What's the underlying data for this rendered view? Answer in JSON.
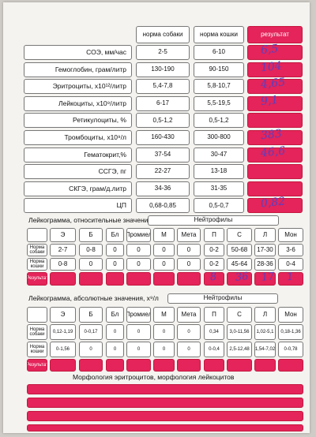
{
  "header": {
    "dog_norm": "норма собаки",
    "cat_norm": "норма кошки",
    "result": "результат"
  },
  "blood_rows": [
    {
      "label": "СОЭ, мм/час",
      "dog": "2-5",
      "cat": "6-10",
      "result": "6,5"
    },
    {
      "label": "Гемоглобин, грам/литр",
      "dog": "130-190",
      "cat": "90-150",
      "result": "104"
    },
    {
      "label": "Эритроциты, х10¹²/литр",
      "dog": "5,4-7,8",
      "cat": "5,8-10,7",
      "result": "4,65"
    },
    {
      "label": "Лейкоциты, х10⁹/литр",
      "dog": "6-17",
      "cat": "5,5-19,5",
      "result": "9,1"
    },
    {
      "label": "Ретикулоциты, %",
      "dog": "0,5-1,2",
      "cat": "0,5-1,2",
      "result": ""
    },
    {
      "label": "Тромбоциты, х10⁹/л",
      "dog": "160-430",
      "cat": "300-800",
      "result": "383"
    },
    {
      "label": "Гематокрит,%",
      "dog": "37-54",
      "cat": "30-47",
      "result": "46,6"
    },
    {
      "label": "ССГЭ, пг",
      "dog": "22-27",
      "cat": "13-18",
      "result": ""
    },
    {
      "label": "СКГЭ, грам/д.литр",
      "dog": "34-36",
      "cat": "31-35",
      "result": ""
    },
    {
      "label": "ЦП",
      "dog": "0,68-0,85",
      "cat": "0,5-0,7",
      "result": "0,82"
    }
  ],
  "relative": {
    "title": "Лейкограмма, относительные значения",
    "neutrophils": "Нейтрофилы",
    "columns": [
      "Э",
      "Б",
      "Бл",
      "Промиел",
      "М",
      "Мета",
      "П",
      "С",
      "Л",
      "Мон"
    ],
    "rows": [
      {
        "label": "Норма собаки",
        "values": [
          "2-7",
          "0-8",
          "0",
          "0",
          "0",
          "0",
          "0-2",
          "50-68",
          "17-30",
          "3-6"
        ]
      },
      {
        "label": "Норма кошки",
        "values": [
          "0-8",
          "0",
          "0",
          "0",
          "0",
          "0",
          "0-2",
          "45-64",
          "28-36",
          "0-4"
        ]
      }
    ],
    "result_label": "Результат",
    "result_values": [
      "",
      "",
      "",
      "",
      "",
      "",
      "8",
      "36",
      "17",
      "1"
    ]
  },
  "absolute": {
    "title": "Лейкограмма, абсолютные значения, х⁹/л",
    "neutrophils": "Нейтрофилы",
    "columns": [
      "Э",
      "Б",
      "Бл",
      "Промиел",
      "М",
      "Мета",
      "П",
      "С",
      "Л",
      "Мон"
    ],
    "rows": [
      {
        "label": "Норма собаки",
        "values": [
          "0,12-1,19",
          "0-0,17",
          "0",
          "0",
          "0",
          "0",
          "0,34",
          "3,0-11,56",
          "1,02-5,1",
          "0,18-1,36"
        ]
      },
      {
        "label": "Норма кошки",
        "values": [
          "0-1,56",
          "0",
          "0",
          "0",
          "0",
          "0",
          "0-0,4",
          "2,5-12,48",
          "1,54-7,02",
          "0-0,78"
        ]
      }
    ],
    "result_label": "Результат"
  },
  "morphology": {
    "title": "Морфология эритроцитов, морфология лейкоцитов"
  },
  "colors": {
    "accent": "#e4245a",
    "ink": "#5a3fc0",
    "paper": "#f4f3f0"
  }
}
